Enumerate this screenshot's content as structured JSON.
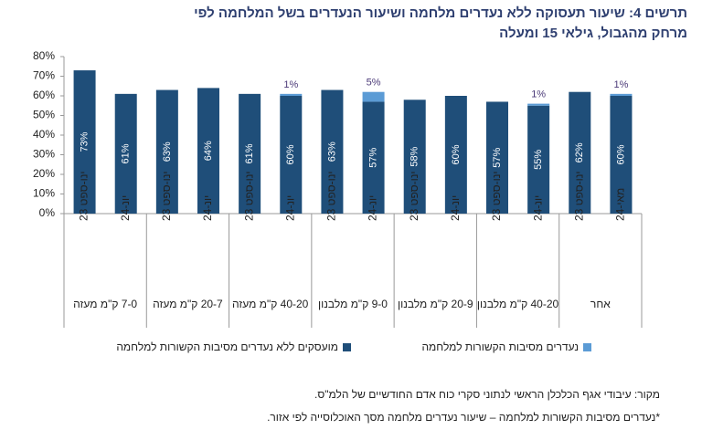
{
  "chart_data": {
    "type": "stacked_bar",
    "title": "תרשים 4: שיעור תעסוקה ללא נעדרים מלחמה ושיעור הנעדרים בשל המלחמה לפי מרחק מהגבול, גילאי 15 ומעלה",
    "categories": [
      "ינו-ספט 23",
      "יונ-24",
      "ינו-ספט 23",
      "יונ-24",
      "ינו-ספט 23",
      "יונ-24",
      "ינו-ספט 23",
      "יונ-24",
      "ינו-ספט 23",
      "יונ-24",
      "ינו-ספט 23",
      "יונ-24",
      "ינו-ספט 23",
      "מאי-24"
    ],
    "groups": [
      "7-0 ק\"מ מעזה",
      "20-7 ק\"מ מעזה",
      "40-20 ק\"מ מעזה",
      "9-0 ק\"מ מלבנון",
      "20-9 ק\"מ מלבנון",
      "40-20 ק\"מ מלבנון",
      "אחר"
    ],
    "series": [
      {
        "name": "מועסקים ללא נעדרים מסיבות הקשורות למלחמה",
        "color": "#1f4e79",
        "values": [
          73,
          61,
          63,
          64,
          61,
          60,
          63,
          57,
          58,
          60,
          57,
          55,
          62,
          60
        ],
        "value_labels": [
          "73%",
          "61%",
          "63%",
          "64%",
          "61%",
          "60%",
          "63%",
          "57%",
          "58%",
          "60%",
          "57%",
          "55%",
          "62%",
          "60%"
        ]
      },
      {
        "name": "נעדרים מסיבות הקשורות למלחמה",
        "color": "#5b9bd5",
        "values": [
          null,
          null,
          null,
          null,
          null,
          1,
          null,
          5,
          null,
          null,
          null,
          1,
          null,
          1
        ],
        "value_labels": [
          null,
          null,
          null,
          null,
          null,
          "1%",
          null,
          "5%",
          null,
          null,
          null,
          "1%",
          null,
          "1%"
        ]
      }
    ],
    "ylim": [
      0,
      80
    ],
    "yticks": [
      {
        "value": 0,
        "label": "0%"
      },
      {
        "value": 10,
        "label": "10%"
      },
      {
        "value": 20,
        "label": "20%"
      },
      {
        "value": 30,
        "label": "30%"
      },
      {
        "value": 40,
        "label": "40%"
      },
      {
        "value": 50,
        "label": "50%"
      },
      {
        "value": 60,
        "label": "60%"
      },
      {
        "value": 70,
        "label": "70%"
      },
      {
        "value": 80,
        "label": "80%"
      }
    ],
    "notes": [
      "מקור: עיבודי אגף הכלכלן הראשי לנתוני סקרי כוח אדם החודשיים של הלמ\"ס.",
      "*נעדרים מסיבות הקשורות למלחמה – שיעור נעדרים מלחמה מסך האוכלוסייה לפי אזור."
    ]
  }
}
